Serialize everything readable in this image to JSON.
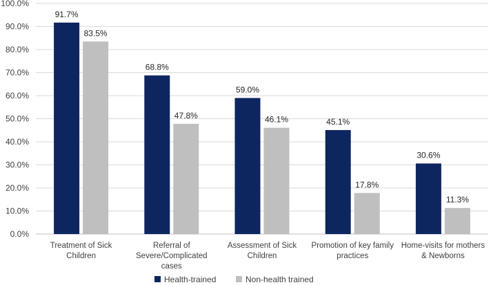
{
  "chart_data": {
    "type": "bar",
    "title": "",
    "xlabel": "",
    "ylabel": "",
    "ylim": [
      0,
      100
    ],
    "yticks": [
      "0.0%",
      "10.0%",
      "20.0%",
      "30.0%",
      "40.0%",
      "50.0%",
      "60.0%",
      "70.0%",
      "80.0%",
      "90.0%",
      "100.0%"
    ],
    "categories": [
      [
        "Treatment of Sick",
        "Children"
      ],
      [
        "Referral of",
        "Severe/Complicated",
        "cases"
      ],
      [
        "Assessment of Sick",
        "Children"
      ],
      [
        "Promotion of key family",
        "practices"
      ],
      [
        "Home-visits for mothers",
        "& Newborns"
      ]
    ],
    "series": [
      {
        "name": "Health-trained",
        "color": "#0e2660",
        "values": [
          91.7,
          68.8,
          59.0,
          45.1,
          30.6
        ],
        "labels": [
          "91.7%",
          "68.8%",
          "59.0%",
          "45.1%",
          "30.6%"
        ]
      },
      {
        "name": "Non-health trained",
        "color": "#bfbfbf",
        "values": [
          83.5,
          47.8,
          46.1,
          17.8,
          11.3
        ],
        "labels": [
          "83.5%",
          "47.8%",
          "46.1%",
          "17.8%",
          "11.3%"
        ]
      }
    ],
    "legend_position": "bottom",
    "grid": true
  }
}
